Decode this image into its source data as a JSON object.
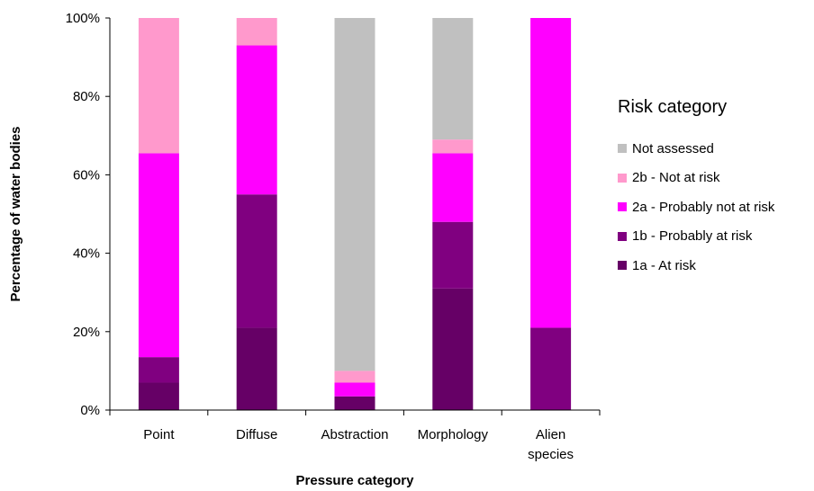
{
  "chart_data": {
    "type": "bar",
    "stacked": true,
    "categories": [
      [
        "Point"
      ],
      [
        "Diffuse"
      ],
      [
        "Abstraction"
      ],
      [
        "Morphology"
      ],
      [
        "Alien",
        "species"
      ]
    ],
    "series": [
      {
        "name": "1a - At risk",
        "color": "#660066",
        "values": [
          7,
          21,
          3.5,
          31,
          0
        ]
      },
      {
        "name": "1b - Probably at risk",
        "color": "#800080",
        "values": [
          6.5,
          34,
          0,
          17,
          21
        ]
      },
      {
        "name": "2a - Probably not at risk",
        "color": "#FF00FF",
        "values": [
          52,
          38,
          3.5,
          17.5,
          79
        ]
      },
      {
        "name": "2b - Not at risk",
        "color": "#FF99CC",
        "values": [
          34.5,
          7,
          3,
          3.5,
          0
        ]
      },
      {
        "name": "Not assessed",
        "color": "#C0C0C0",
        "values": [
          0,
          0,
          90,
          31,
          0
        ]
      }
    ],
    "xlabel": "Pressure category",
    "ylabel": "Percentage of water bodies",
    "ylim": [
      0,
      100
    ],
    "yticks": [
      "0%",
      "20%",
      "40%",
      "60%",
      "80%",
      "100%"
    ],
    "legend_title": "Risk category",
    "legend_placement": "right",
    "legend_order": [
      "Not assessed",
      "2b - Not at risk",
      "2a - Probably not at risk",
      "1b - Probably at risk",
      "1a - At risk"
    ],
    "grid": false
  }
}
